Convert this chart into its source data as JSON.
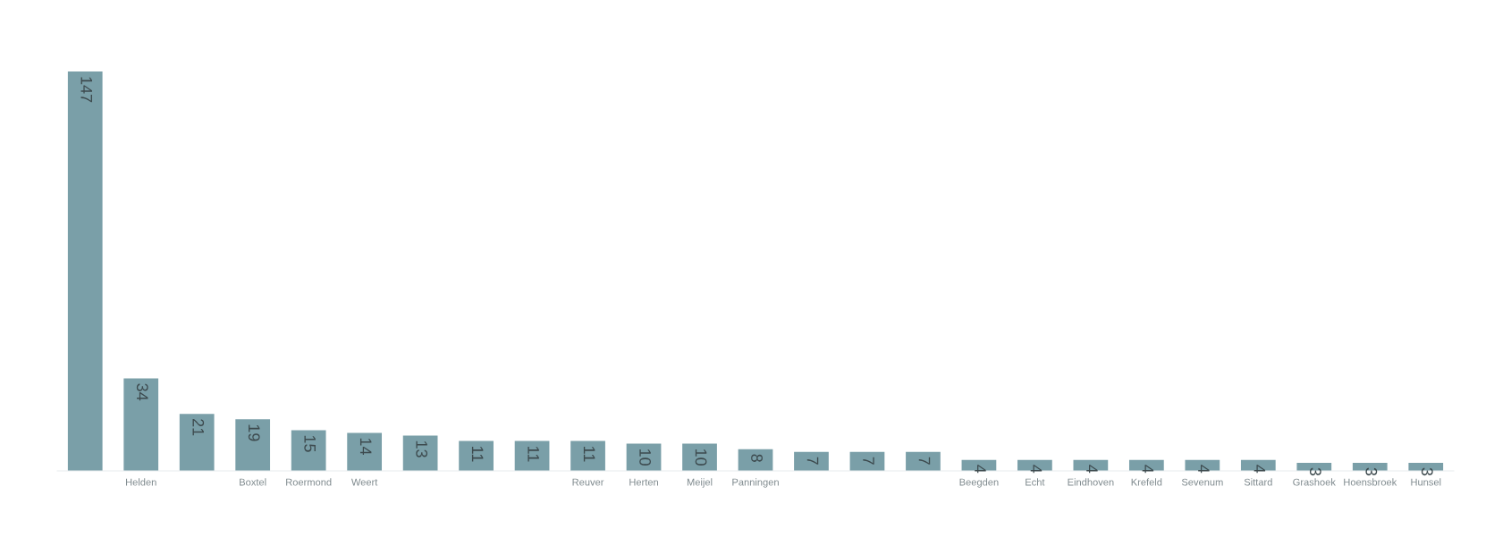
{
  "chart_data": {
    "type": "bar",
    "categories": [
      null,
      "Helden",
      null,
      "Boxtel",
      "Roermond",
      "Weert",
      null,
      null,
      null,
      "Reuver",
      "Herten",
      "Meijel",
      "Panningen",
      null,
      null,
      null,
      "Beegden",
      "Echt",
      "Eindhoven",
      "Krefeld",
      "Sevenum",
      "Sittard",
      "Grashoek",
      "Hoensbroek",
      "Hunsel"
    ],
    "values": [
      147,
      34,
      21,
      19,
      15,
      14,
      13,
      11,
      11,
      11,
      10,
      10,
      8,
      7,
      7,
      7,
      4,
      4,
      4,
      4,
      4,
      4,
      3,
      3,
      3
    ],
    "color": "#7a9fa8",
    "data_labels": true,
    "grid": false,
    "legend": false
  }
}
